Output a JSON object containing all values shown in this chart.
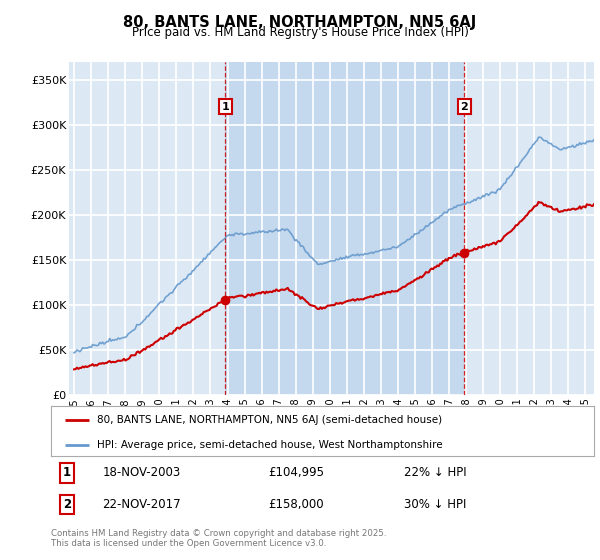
{
  "title_line1": "80, BANTS LANE, NORTHAMPTON, NN5 6AJ",
  "title_line2": "Price paid vs. HM Land Registry's House Price Index (HPI)",
  "ylabel_ticks": [
    "£0",
    "£50K",
    "£100K",
    "£150K",
    "£200K",
    "£250K",
    "£300K",
    "£350K"
  ],
  "ytick_values": [
    0,
    50000,
    100000,
    150000,
    200000,
    250000,
    300000,
    350000
  ],
  "ylim": [
    0,
    370000
  ],
  "xlim_start": 1994.7,
  "xlim_end": 2025.5,
  "plot_bg_color": "#dce9f5",
  "highlight_bg_color": "#c5d9ee",
  "grid_color": "#ffffff",
  "hpi_color": "#6699cc",
  "price_color": "#cc0000",
  "marker1_x": 2003.88,
  "marker1_y": 104995,
  "marker2_x": 2017.9,
  "marker2_y": 158000,
  "legend_line1": "80, BANTS LANE, NORTHAMPTON, NN5 6AJ (semi-detached house)",
  "legend_line2": "HPI: Average price, semi-detached house, West Northamptonshire",
  "marker1_date": "18-NOV-2003",
  "marker1_price": "£104,995",
  "marker1_hpi": "22% ↓ HPI",
  "marker2_date": "22-NOV-2017",
  "marker2_price": "£158,000",
  "marker2_hpi": "30% ↓ HPI",
  "footnote": "Contains HM Land Registry data © Crown copyright and database right 2025.\nThis data is licensed under the Open Government Licence v3.0.",
  "xtick_years": [
    1995,
    1996,
    1997,
    1998,
    1999,
    2000,
    2001,
    2002,
    2003,
    2004,
    2005,
    2006,
    2007,
    2008,
    2009,
    2010,
    2011,
    2012,
    2013,
    2014,
    2015,
    2016,
    2017,
    2018,
    2019,
    2020,
    2021,
    2022,
    2023,
    2024,
    2025
  ]
}
